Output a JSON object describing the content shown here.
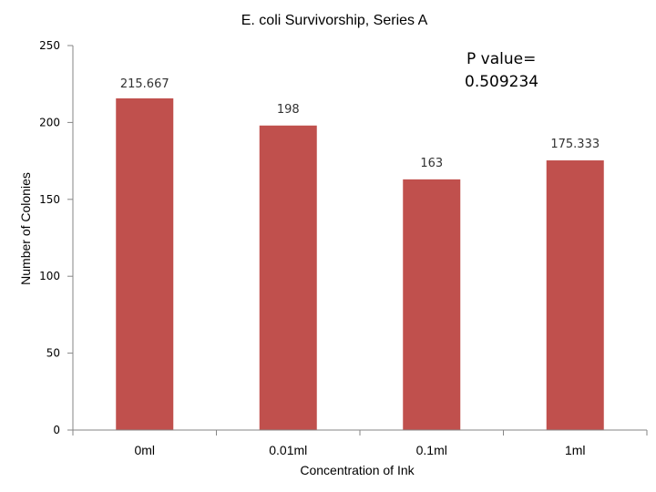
{
  "chart_data": {
    "type": "bar",
    "title": "E. coli Survivorship, Series A",
    "xlabel": "Concentration of Ink",
    "ylabel": "Number of Colonies",
    "categories": [
      "0ml",
      "0.01ml",
      "0.1ml",
      "1ml"
    ],
    "values": [
      215.667,
      198,
      163,
      175.333
    ],
    "data_labels": [
      "215.667",
      "198",
      "163",
      "175.333"
    ],
    "ylim": [
      0,
      250
    ],
    "yticks": [
      0,
      50,
      100,
      150,
      200,
      250
    ],
    "grid": false,
    "bar_color": "#C0504D",
    "annotation": [
      "P value=",
      "0.509234"
    ]
  }
}
